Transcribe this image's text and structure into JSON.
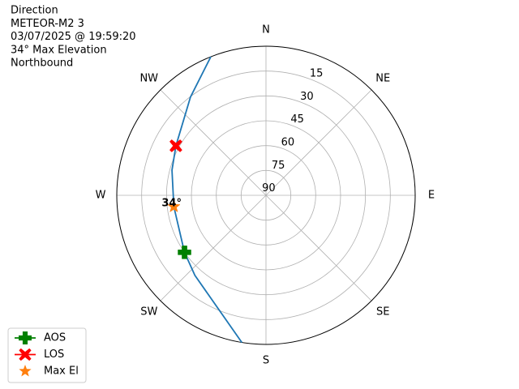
{
  "chart_data": {
    "type": "polar",
    "text_lines": [
      "Direction",
      "METEOR-M2 3",
      "03/07/2025 @ 19:59:20",
      "34° Max Elevation",
      "Northbound"
    ],
    "xticks": [
      {
        "value": 0,
        "label": "N"
      },
      {
        "value": 45,
        "label": "NE"
      },
      {
        "value": 90,
        "label": "E"
      },
      {
        "value": 135,
        "label": "SE"
      },
      {
        "value": 180,
        "label": "S"
      },
      {
        "value": 225,
        "label": "SW"
      },
      {
        "value": 270,
        "label": "W"
      },
      {
        "value": 315,
        "label": "NW"
      }
    ],
    "rlim": [
      90,
      0
    ],
    "rticks": [
      15,
      30,
      45,
      60,
      75,
      90
    ],
    "grid": true,
    "legend": "lower left",
    "series": [
      {
        "color": "#1f77b4",
        "azimuth": [
          189.3,
          221.6,
          235,
          263,
          285,
          298.8,
          322.5,
          338.3
        ],
        "elevation": [
          0,
          25.4,
          30,
          34,
          31.3,
          28,
          15.2,
          0
        ]
      },
      {
        "name": "AOS",
        "color": "#008000",
        "marker": "plus",
        "azimuth": [
          235
        ],
        "elevation": [
          30
        ]
      },
      {
        "name": "LOS",
        "color": "#ff0000",
        "marker": "x",
        "azimuth": [
          298.8
        ],
        "elevation": [
          28
        ]
      },
      {
        "name": "Max El",
        "color": "#ff7f0e",
        "marker": "star",
        "azimuth": [
          263
        ],
        "elevation": [
          34
        ]
      }
    ],
    "annotations": [
      {
        "text": "34°",
        "series": 3
      }
    ]
  }
}
